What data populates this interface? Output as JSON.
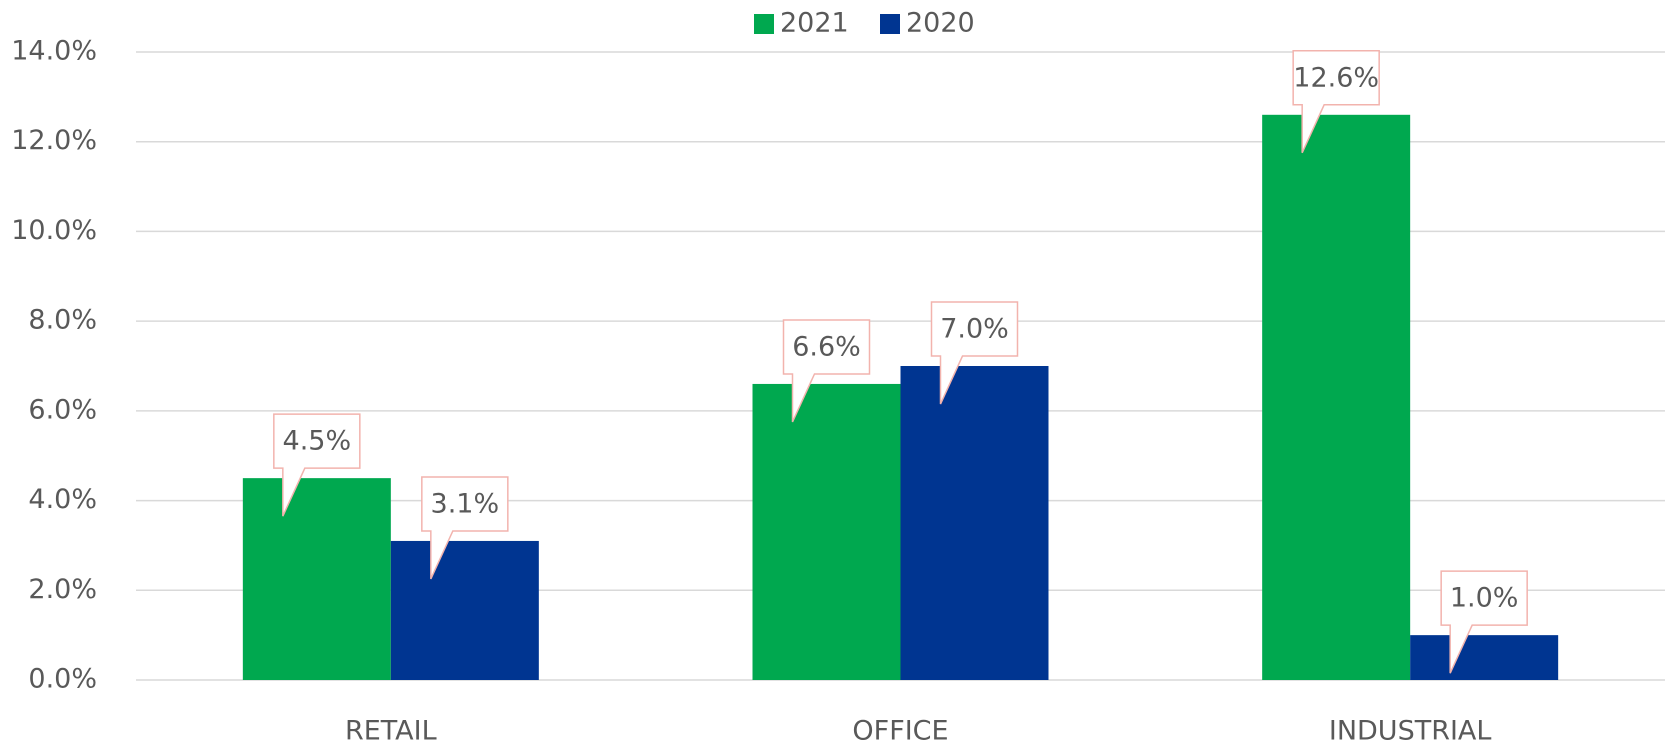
{
  "chart_data": {
    "type": "bar",
    "categories": [
      "RETAIL",
      "OFFICE",
      "INDUSTRIAL"
    ],
    "series": [
      {
        "name": "2021",
        "color": "#00a84f",
        "values": [
          4.5,
          6.6,
          12.6
        ],
        "value_labels": [
          "4.5%",
          "6.6%",
          "12.6%"
        ]
      },
      {
        "name": "2020",
        "color": "#003591",
        "values": [
          3.1,
          7.0,
          1.0
        ],
        "value_labels": [
          "3.1%",
          "7.0%",
          "1.0%"
        ]
      }
    ],
    "ylim": [
      0,
      14
    ],
    "yticks": [
      {
        "value": 0,
        "label": "0.0%"
      },
      {
        "value": 2,
        "label": "2.0%"
      },
      {
        "value": 4,
        "label": "4.0%"
      },
      {
        "value": 6,
        "label": "6.0%"
      },
      {
        "value": 8,
        "label": "8.0%"
      },
      {
        "value": 10,
        "label": "10.0%"
      },
      {
        "value": 12,
        "label": "12.0%"
      },
      {
        "value": 14,
        "label": "14.0%"
      }
    ],
    "grid": true,
    "legend": "top"
  }
}
